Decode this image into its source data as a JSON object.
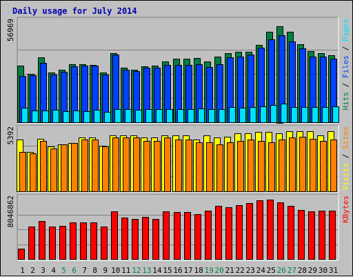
{
  "chart_data": {
    "type": "bar",
    "title": "Daily usage for July 2014",
    "days": [
      "1",
      "2",
      "3",
      "4",
      "5",
      "6",
      "7",
      "8",
      "9",
      "10",
      "11",
      "12",
      "13",
      "14",
      "15",
      "16",
      "17",
      "18",
      "19",
      "20",
      "21",
      "22",
      "23",
      "24",
      "25",
      "26",
      "27",
      "28",
      "29",
      "30",
      "31"
    ],
    "weekend_days": [
      "5",
      "6",
      "12",
      "13",
      "19",
      "20",
      "26",
      "27"
    ],
    "panels": [
      {
        "ymax_label": "56969",
        "ymax": 56969,
        "series": [
          {
            "name": "Hits",
            "color": "#008040",
            "values": [
              33500,
              28500,
              38500,
              29200,
              31100,
              34200,
              34500,
              34000,
              29600,
              41000,
              32300,
              31100,
              33000,
              33300,
              35800,
              37600,
              37400,
              38100,
              36000,
              38700,
              40800,
              41800,
              41500,
              45600,
              53300,
              56969,
              53400,
              46000,
              41900,
              40800,
              39800
            ]
          },
          {
            "name": "Files",
            "color": "#0040ff",
            "values": [
              27500,
              27700,
              35300,
              28300,
              29900,
              32900,
              33300,
              33400,
              28300,
              40000,
              30900,
              30200,
              32300,
              32200,
              34000,
              33900,
              34000,
              34400,
              32800,
              34400,
              38500,
              38900,
              40100,
              44200,
              49100,
              51400,
              47800,
              43600,
              38900,
              38900,
              37700
            ]
          },
          {
            "name": "Pages",
            "color": "#00e0ff",
            "values": [
              8400,
              6900,
              7000,
              7300,
              6500,
              7000,
              6600,
              7200,
              6100,
              7900,
              7600,
              7400,
              7700,
              7600,
              7900,
              7700,
              7600,
              8000,
              7700,
              7800,
              9000,
              8500,
              9000,
              9200,
              10300,
              10900,
              9000,
              9000,
              9000,
              9100,
              9400
            ]
          }
        ],
        "right_labels": [
          {
            "text": "Hits",
            "color": "#008040"
          },
          {
            "text": "Files",
            "color": "#0040ff"
          },
          {
            "text": "Pages",
            "color": "#00e0ff"
          }
        ]
      },
      {
        "ymax_label": "5392",
        "ymax": 5392,
        "series": [
          {
            "name": "Visits",
            "color": "#ffff00",
            "values": [
              4600,
              3500,
              4700,
              4000,
              4200,
              4300,
              4800,
              4800,
              4100,
              5000,
              5000,
              5000,
              4800,
              4800,
              5000,
              5000,
              5000,
              4600,
              5000,
              4800,
              4900,
              5200,
              5200,
              5300,
              5300,
              5200,
              5392,
              5392,
              5392,
              5000,
              5392
            ]
          },
          {
            "name": "Sites",
            "color": "#ff8000",
            "values": [
              3500,
              3400,
              4500,
              3800,
              4200,
              4300,
              4600,
              4600,
              4000,
              4800,
              4800,
              4800,
              4500,
              4500,
              4800,
              4600,
              4600,
              4400,
              4400,
              4200,
              4400,
              4500,
              4600,
              4500,
              4400,
              4600,
              4800,
              4900,
              4700,
              4500,
              4600
            ]
          }
        ],
        "right_labels": [
          {
            "text": "Visits",
            "color": "#ffff00"
          },
          {
            "text": "Sites",
            "color": "#ff8000"
          }
        ]
      },
      {
        "ymax_label": "8046862",
        "ymax": 8046862,
        "series": [
          {
            "name": "KBytes",
            "color": "#ff0000",
            "values": [
              1400000,
              4400000,
              5200000,
              4400000,
              4500000,
              5000000,
              5000000,
              5000000,
              4400000,
              6500000,
              5600000,
              5500000,
              5700000,
              5500000,
              6500000,
              6400000,
              6400000,
              6100000,
              6600000,
              7200000,
              7100000,
              7300000,
              7600000,
              8000000,
              8046862,
              7700000,
              7200000,
              6700000,
              6500000,
              6600000,
              6600000
            ]
          }
        ],
        "right_labels": [
          {
            "text": "KBytes",
            "color": "#ff0000"
          }
        ]
      }
    ]
  },
  "colors": {
    "background": "#c0c0c0",
    "panel": "#c0c0c0",
    "title": "#0000b0",
    "weekday_label": "#000000",
    "weekend_label": "#008040",
    "separator": "#000000"
  }
}
